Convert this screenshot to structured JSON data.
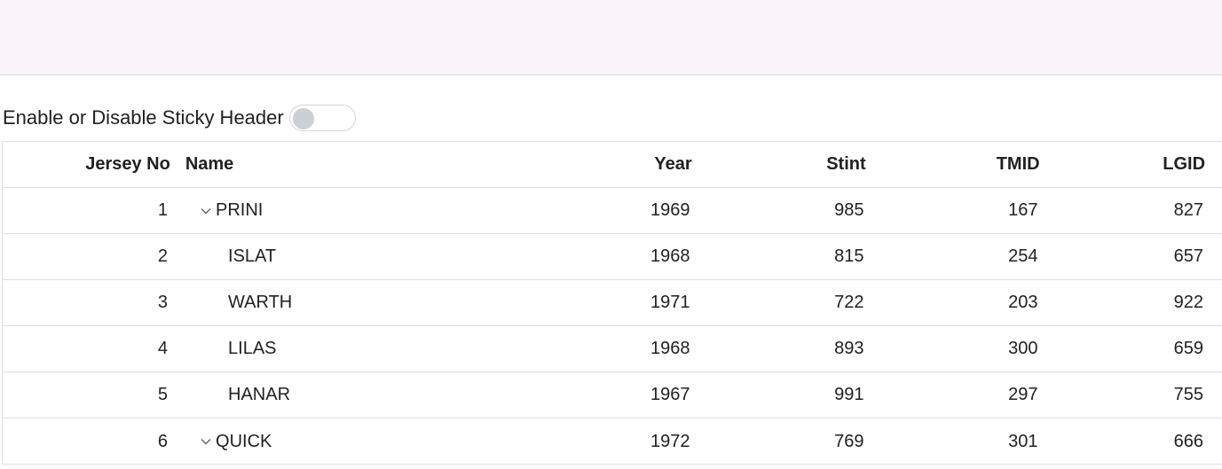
{
  "toggle": {
    "label": "Enable or Disable Sticky Header",
    "enabled": false
  },
  "grid": {
    "columns": [
      "Jersey No",
      "Name",
      "Year",
      "Stint",
      "TMID",
      "LGID"
    ],
    "rows": [
      {
        "jersey": "1",
        "name": "PRINI",
        "year": "1969",
        "stint": "985",
        "tmid": "167",
        "lgid": "827",
        "parent": true,
        "expanded": true
      },
      {
        "jersey": "2",
        "name": "ISLAT",
        "year": "1968",
        "stint": "815",
        "tmid": "254",
        "lgid": "657",
        "parent": false
      },
      {
        "jersey": "3",
        "name": "WARTH",
        "year": "1971",
        "stint": "722",
        "tmid": "203",
        "lgid": "922",
        "parent": false
      },
      {
        "jersey": "4",
        "name": "LILAS",
        "year": "1968",
        "stint": "893",
        "tmid": "300",
        "lgid": "659",
        "parent": false
      },
      {
        "jersey": "5",
        "name": "HANAR",
        "year": "1967",
        "stint": "991",
        "tmid": "297",
        "lgid": "755",
        "parent": false
      },
      {
        "jersey": "6",
        "name": "QUICK",
        "year": "1972",
        "stint": "769",
        "tmid": "301",
        "lgid": "666",
        "parent": true,
        "expanded": true
      }
    ]
  },
  "icons": {
    "expand": "chevron-down-icon"
  },
  "colors": {
    "banner": "#fbf5f9",
    "border": "#e0e0e0",
    "switch_knob": "#cbd0d6"
  }
}
